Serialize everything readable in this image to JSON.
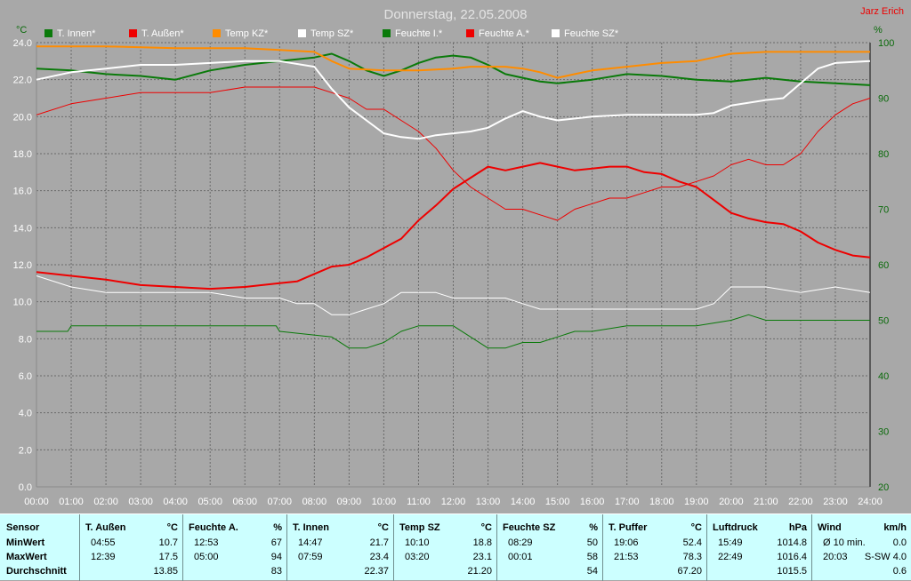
{
  "title": "Donnerstag, 22.05.2008",
  "author": "Jarz Erich",
  "left_unit": "°C",
  "right_unit": "%",
  "colors": {
    "bg": "#a8a8a8",
    "white": "#ffffff",
    "red": "#ee0000",
    "green": "#0a7a0a",
    "orange": "#ff8c00",
    "title": "#e4e4e4"
  },
  "legend": [
    {
      "label": "T. Innen*",
      "color": "#0a7a0a"
    },
    {
      "label": "T. Außen*",
      "color": "#ee0000"
    },
    {
      "label": "Temp KZ*",
      "color": "#ff8c00"
    },
    {
      "label": "Temp SZ*",
      "color": "#ffffff"
    },
    {
      "label": "Feuchte I.*",
      "color": "#0a7a0a"
    },
    {
      "label": "Feuchte A.*",
      "color": "#ee0000"
    },
    {
      "label": "Feuchte SZ*",
      "color": "#ffffff"
    }
  ],
  "chart_data": {
    "type": "line",
    "title": "Donnerstag, 22.05.2008",
    "xlabel": "",
    "ylabel": "°C",
    "y2label": "%",
    "x_ticks": [
      "00:00",
      "01:00",
      "02:00",
      "03:00",
      "04:00",
      "05:00",
      "06:00",
      "07:00",
      "08:00",
      "09:00",
      "10:00",
      "11:00",
      "12:00",
      "13:00",
      "14:00",
      "15:00",
      "16:00",
      "17:00",
      "18:00",
      "19:00",
      "20:00",
      "21:00",
      "22:00",
      "23:00",
      "24:00"
    ],
    "y_ticks": [
      "0.0",
      "2.0",
      "4.0",
      "6.0",
      "8.0",
      "10.0",
      "12.0",
      "14.0",
      "16.0",
      "18.0",
      "20.0",
      "22.0",
      "24.0"
    ],
    "y2_ticks": [
      "20",
      "30",
      "40",
      "50",
      "60",
      "70",
      "80",
      "90",
      "100"
    ],
    "ylim": [
      0,
      24
    ],
    "y2lim": [
      20,
      100
    ],
    "grid": true,
    "series": [
      {
        "name": "T. Innen*",
        "axis": "left",
        "color": "#0a7a0a",
        "width": 2,
        "x": [
          0,
          1,
          2,
          3,
          4,
          5,
          6,
          7,
          8,
          8.5,
          9,
          9.5,
          10,
          10.5,
          11,
          11.5,
          12,
          12.5,
          13,
          13.5,
          14,
          14.5,
          15,
          16,
          17,
          18,
          19,
          20,
          21,
          22,
          23,
          24
        ],
        "y": [
          22.6,
          22.5,
          22.3,
          22.2,
          22.0,
          22.5,
          22.8,
          23.0,
          23.2,
          23.4,
          23.0,
          22.5,
          22.2,
          22.5,
          22.9,
          23.2,
          23.3,
          23.2,
          22.8,
          22.3,
          22.1,
          21.9,
          21.8,
          22.0,
          22.3,
          22.2,
          22.0,
          21.9,
          22.1,
          21.9,
          21.8,
          21.7
        ]
      },
      {
        "name": "T. Außen*",
        "axis": "left",
        "color": "#ee0000",
        "width": 2,
        "x": [
          0,
          1,
          2,
          3,
          4,
          5,
          6,
          7,
          7.5,
          8,
          8.5,
          9,
          9.5,
          10,
          10.5,
          11,
          11.5,
          12,
          12.5,
          13,
          13.5,
          14,
          14.5,
          15,
          15.5,
          16,
          16.5,
          17,
          17.5,
          18,
          18.5,
          19,
          19.5,
          20,
          20.5,
          21,
          21.5,
          22,
          22.5,
          23,
          23.5,
          24
        ],
        "y": [
          11.6,
          11.4,
          11.2,
          10.9,
          10.8,
          10.7,
          10.8,
          11.0,
          11.1,
          11.5,
          11.9,
          12.0,
          12.4,
          12.9,
          13.4,
          14.4,
          15.2,
          16.1,
          16.7,
          17.3,
          17.1,
          17.3,
          17.5,
          17.3,
          17.1,
          17.2,
          17.3,
          17.3,
          17.0,
          16.9,
          16.5,
          16.2,
          15.5,
          14.8,
          14.5,
          14.3,
          14.2,
          13.8,
          13.2,
          12.8,
          12.5,
          12.4
        ]
      },
      {
        "name": "Temp KZ*",
        "axis": "left",
        "color": "#ff8c00",
        "width": 2,
        "x": [
          0,
          2,
          4,
          6,
          7,
          8,
          8.5,
          9,
          10,
          11,
          12,
          12.5,
          13,
          13.5,
          14,
          14.5,
          15,
          15.5,
          16,
          17,
          18,
          19,
          19.5,
          20,
          21,
          22,
          23,
          24
        ],
        "y": [
          23.8,
          23.8,
          23.7,
          23.7,
          23.6,
          23.5,
          23.0,
          22.6,
          22.5,
          22.5,
          22.6,
          22.7,
          22.7,
          22.7,
          22.6,
          22.4,
          22.1,
          22.3,
          22.5,
          22.7,
          22.9,
          23.0,
          23.2,
          23.4,
          23.5,
          23.5,
          23.5,
          23.5
        ]
      },
      {
        "name": "Temp SZ*",
        "axis": "left",
        "color": "#ffffff",
        "width": 2,
        "x": [
          0,
          1,
          2,
          3,
          4,
          5,
          6,
          7,
          8,
          8.5,
          9,
          9.5,
          10,
          10.5,
          11,
          11.5,
          12,
          12.5,
          13,
          13.5,
          14,
          14.5,
          15,
          16,
          17,
          18,
          19,
          19.5,
          20,
          21,
          21.5,
          22,
          22.5,
          23,
          24
        ],
        "y": [
          22.0,
          22.4,
          22.6,
          22.8,
          22.8,
          22.9,
          23.0,
          23.0,
          22.7,
          21.5,
          20.5,
          19.8,
          19.1,
          18.9,
          18.8,
          19.0,
          19.1,
          19.2,
          19.4,
          19.9,
          20.3,
          20.0,
          19.8,
          20.0,
          20.1,
          20.1,
          20.1,
          20.2,
          20.6,
          20.9,
          21.0,
          21.8,
          22.6,
          22.9,
          23.0
        ]
      },
      {
        "name": "Feuchte I.*",
        "axis": "right",
        "color": "#0a7a0a",
        "width": 1,
        "x": [
          0,
          0.9,
          1,
          6.9,
          7,
          8.5,
          9,
          9.5,
          10,
          10.5,
          11,
          12,
          12.5,
          13,
          13.5,
          14,
          14.5,
          15,
          15.5,
          16,
          17,
          18,
          19,
          20,
          20.5,
          21,
          22,
          23,
          24
        ],
        "y": [
          48,
          48,
          49,
          49,
          48,
          47,
          45,
          45,
          46,
          48,
          49,
          49,
          47,
          45,
          45,
          46,
          46,
          47,
          48,
          48,
          49,
          49,
          49,
          50,
          51,
          50,
          50,
          50,
          50
        ]
      },
      {
        "name": "Feuchte A.*",
        "axis": "right",
        "color": "#ee0000",
        "width": 1,
        "x": [
          0,
          1,
          2,
          3,
          4,
          5,
          6,
          7,
          7.5,
          8,
          8.5,
          9,
          9.5,
          10,
          10.5,
          11,
          11.5,
          12,
          12.5,
          13,
          13.5,
          14,
          14.5,
          15,
          15.5,
          16,
          16.5,
          17,
          17.5,
          18,
          18.5,
          19,
          19.5,
          20,
          20.5,
          21,
          21.5,
          22,
          22.5,
          23,
          23.5,
          24
        ],
        "y": [
          87,
          89,
          90,
          91,
          91,
          91,
          92,
          92,
          92,
          92,
          91,
          90,
          88,
          88,
          86,
          84,
          81,
          77,
          74,
          72,
          70,
          70,
          69,
          68,
          70,
          71,
          72,
          72,
          73,
          74,
          74,
          75,
          76,
          78,
          79,
          78,
          78,
          80,
          84,
          87,
          89,
          90
        ]
      },
      {
        "name": "Feuchte SZ*",
        "axis": "right",
        "color": "#ffffff",
        "width": 1,
        "x": [
          0,
          1,
          2,
          3,
          4,
          5,
          6,
          7,
          7.5,
          8,
          8.5,
          9,
          9.5,
          10,
          10.5,
          11,
          11.5,
          12,
          12.5,
          13,
          13.5,
          14,
          14.5,
          15,
          16,
          17,
          18,
          19,
          19.5,
          20,
          21,
          22,
          23,
          24
        ],
        "y": [
          58,
          56,
          55,
          55,
          55,
          55,
          54,
          54,
          53,
          53,
          51,
          51,
          52,
          53,
          55,
          55,
          55,
          54,
          54,
          54,
          54,
          53,
          52,
          52,
          52,
          52,
          52,
          52,
          53,
          56,
          56,
          55,
          56,
          55
        ]
      }
    ]
  },
  "stats": {
    "row_labels": [
      "Sensor",
      "MinWert",
      "MaxWert",
      "Durchschnitt"
    ],
    "columns": [
      {
        "name": "T. Außen",
        "unit": "°C",
        "min_time": "04:55",
        "min_val": "10.7",
        "max_time": "12:39",
        "max_val": "17.5",
        "avg": "13.85"
      },
      {
        "name": "Feuchte A.",
        "unit": "%",
        "min_time": "12:53",
        "min_val": "67",
        "max_time": "05:00",
        "max_val": "94",
        "avg": "83"
      },
      {
        "name": "T. Innen",
        "unit": "°C",
        "min_time": "14:47",
        "min_val": "21.7",
        "max_time": "07:59",
        "max_val": "23.4",
        "avg": "22.37"
      },
      {
        "name": "Temp SZ",
        "unit": "°C",
        "min_time": "10:10",
        "min_val": "18.8",
        "max_time": "03:20",
        "max_val": "23.1",
        "avg": "21.20"
      },
      {
        "name": "Feuchte SZ",
        "unit": "%",
        "min_time": "08:29",
        "min_val": "50",
        "max_time": "00:01",
        "max_val": "58",
        "avg": "54"
      },
      {
        "name": "T. Puffer",
        "unit": "°C",
        "min_time": "19:06",
        "min_val": "52.4",
        "max_time": "21:53",
        "max_val": "78.3",
        "avg": "67.20"
      },
      {
        "name": "Luftdruck",
        "unit": "hPa",
        "min_time": "15:49",
        "min_val": "1014.8",
        "max_time": "22:49",
        "max_val": "1016.4",
        "avg": "1015.5"
      },
      {
        "name": "Wind",
        "unit": "km/h",
        "min_time": "Ø 10 min.",
        "min_val": "0.0",
        "max_time": "20:03",
        "max_val": "S-SW 4.0",
        "avg": "0.6"
      }
    ]
  }
}
